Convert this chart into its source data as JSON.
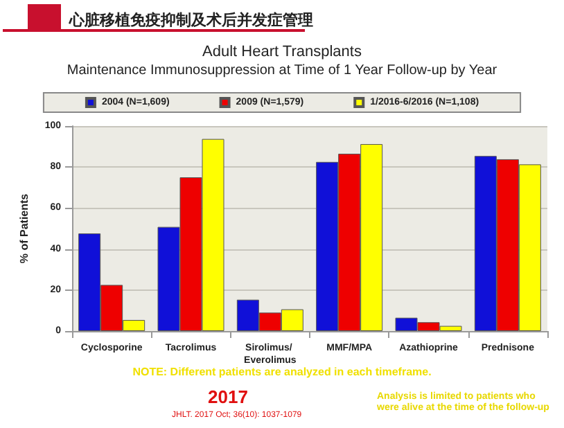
{
  "chart_data": {
    "type": "bar",
    "title": "Adult Heart Transplants",
    "subtitle": "Maintenance Immunosuppression at Time of 1 Year Follow-up by Year",
    "ylabel": "% of Patients",
    "categories": [
      "Cyclosporine",
      "Tacrolimus",
      "Sirolimus/ Everolimus",
      "MMF/MPA",
      "Azathioprine",
      "Prednisone"
    ],
    "series": [
      {
        "name": "2004 (N=1,609)",
        "color": "#1010d8",
        "values": [
          47.6,
          50.8,
          15.3,
          82.5,
          6.5,
          85.4
        ]
      },
      {
        "name": "2009 (N=1,579)",
        "color": "#ee0000",
        "values": [
          22.5,
          75,
          9,
          86.5,
          4.3,
          83.8
        ]
      },
      {
        "name": "1/2016-6/2016 (N=1,108)",
        "color": "#ffff00",
        "values": [
          5.4,
          93.7,
          10.6,
          91.2,
          2.5,
          81.3
        ]
      }
    ],
    "ylim": [
      0,
      100
    ],
    "yticks": [
      0,
      20,
      40,
      60,
      80,
      100
    ],
    "grid": "y",
    "legend": "top",
    "annotations": [
      "心脏移植免疫抑制及术后并发症管理",
      "NOTE: Different patients are analyzed in each timeframe.",
      "2017",
      "JHLT. 2017 Oct; 36(10): 1037-1079",
      "Analysis is limited to patients who were alive at the time of the follow-up"
    ]
  }
}
